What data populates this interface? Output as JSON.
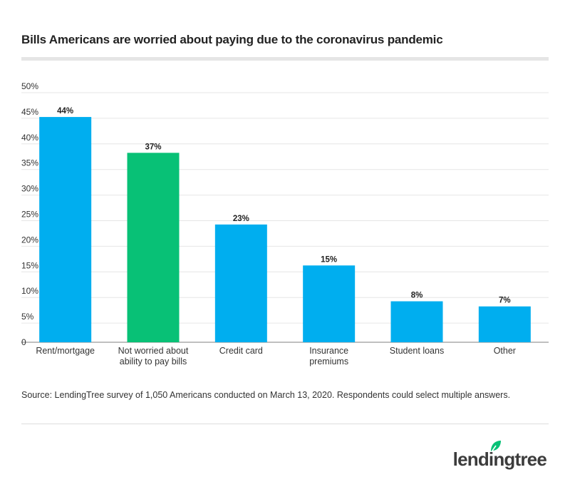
{
  "title": "Bills Americans are worried about paying due to the coronavirus pandemic",
  "source": "Source: LendingTree survey of 1,050 Americans conducted on March 13, 2020. Respondents could select multiple answers.",
  "logo_text": "lendingtree",
  "colors": {
    "primary_bar": "#00aeef",
    "highlight_bar": "#08c176",
    "grid": "#e6e6e6",
    "axis": "#999999"
  },
  "chart_data": {
    "type": "bar",
    "title": "Bills Americans are worried about paying due to the coronavirus pandemic",
    "xlabel": "",
    "ylabel": "",
    "ylim": [
      0,
      50
    ],
    "yticks": [
      "0",
      "5%",
      "10%",
      "15%",
      "20%",
      "25%",
      "30%",
      "35%",
      "40%",
      "45%",
      "50%"
    ],
    "grid": true,
    "categories": [
      [
        "Rent/mortgage"
      ],
      [
        "Not worried about",
        "ability to pay bills"
      ],
      [
        "Credit card"
      ],
      [
        "Insurance",
        "premiums"
      ],
      [
        "Student loans"
      ],
      [
        "Other"
      ]
    ],
    "values": [
      44,
      37,
      23,
      15,
      8,
      7
    ],
    "value_labels": [
      "44%",
      "37%",
      "23%",
      "15%",
      "8%",
      "7%"
    ],
    "highlight_index": 1
  }
}
